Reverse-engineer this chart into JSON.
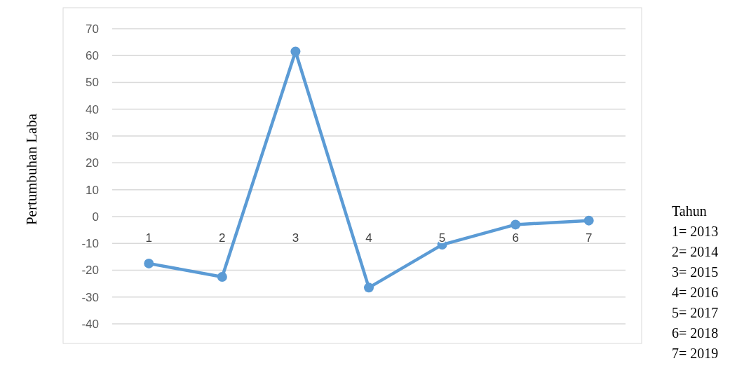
{
  "chart_data": {
    "type": "line",
    "ylabel": "Pertumbuhan Laba",
    "categories": [
      "1",
      "2",
      "3",
      "4",
      "5",
      "6",
      "7"
    ],
    "series": [
      {
        "color": "#5b9bd5",
        "values": [
          -17.5,
          -22.5,
          61.5,
          -26.5,
          -10.5,
          -3,
          -1.5
        ]
      }
    ],
    "ylim": [
      -40,
      70
    ],
    "yticks": [
      -40,
      -30,
      -20,
      -10,
      0,
      10,
      20,
      30,
      40,
      50,
      60,
      70
    ],
    "grid": "y",
    "marker": "circle",
    "line_style": "solid",
    "annotations": [
      "Tahun",
      "1= 2013",
      "2= 2014",
      "3= 2015",
      "4= 2016",
      "5= 2017",
      "6= 2018",
      "7= 2019"
    ]
  }
}
